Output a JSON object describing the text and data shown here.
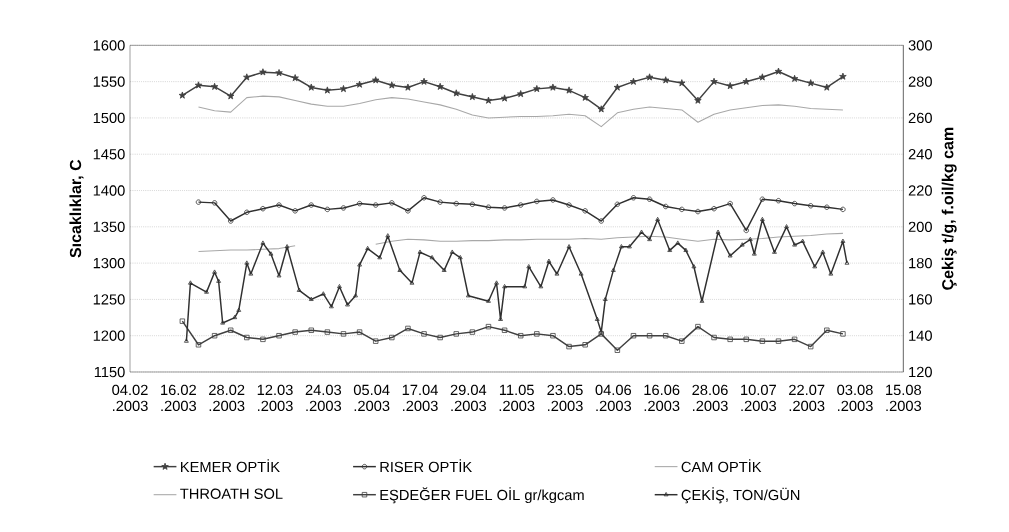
{
  "chart_data": {
    "type": "line",
    "ylabel": "Sıcaklıklar, C",
    "y2label": "Çekiş t/g, f.oil/kg cam",
    "x": [
      "2003-02-17",
      "2003-02-21",
      "2003-02-25",
      "2003-03-01",
      "2003-03-05",
      "2003-03-09",
      "2003-03-13",
      "2003-03-17",
      "2003-03-21",
      "2003-03-25",
      "2003-03-29",
      "2003-04-02",
      "2003-04-06",
      "2003-04-10",
      "2003-04-14",
      "2003-04-18",
      "2003-04-22",
      "2003-04-26",
      "2003-04-30",
      "2003-05-04",
      "2003-05-08",
      "2003-05-12",
      "2003-05-16",
      "2003-05-20",
      "2003-05-24",
      "2003-05-28",
      "2003-06-01",
      "2003-06-05",
      "2003-06-09",
      "2003-06-13",
      "2003-06-17",
      "2003-06-21",
      "2003-06-25",
      "2003-06-29",
      "2003-07-03",
      "2003-07-07",
      "2003-07-11",
      "2003-07-15",
      "2003-07-19",
      "2003-07-23",
      "2003-07-27",
      "2003-07-31"
    ],
    "series": [
      {
        "name": "KEMER OPTİK",
        "color": "#404040",
        "marker": "star",
        "values": [
          1531,
          1545,
          1543,
          1530,
          1556,
          1563,
          1562,
          1555,
          1542,
          1538,
          1540,
          1546,
          1552,
          1545,
          1542,
          1550,
          1543,
          1534,
          1529,
          1524,
          1527,
          1533,
          1540,
          1542,
          1538,
          1528,
          1512,
          1542,
          1550,
          1556,
          1552,
          1548,
          1524,
          1550,
          1544,
          1550,
          1556,
          1564,
          1554,
          1548,
          1542,
          1557
        ]
      },
      {
        "name": "RISER OPTİK",
        "color": "#303030",
        "marker": "circle",
        "values": [
          null,
          1384,
          1383,
          1358,
          1370,
          1375,
          1380,
          1372,
          1380,
          1374,
          1376,
          1382,
          1380,
          1383,
          1372,
          1390,
          1384,
          1382,
          1381,
          1377,
          1376,
          1380,
          1385,
          1387,
          1380,
          1372,
          1358,
          1381,
          1390,
          1388,
          1378,
          1374,
          1371,
          1375,
          1382,
          1345,
          1388,
          1386,
          1382,
          1379,
          1377,
          1374
        ]
      },
      {
        "name": "CAM OPTİK",
        "color": "#a8a8a8",
        "marker": "none",
        "values": [
          null,
          1515,
          1510,
          1508,
          1528,
          1530,
          1529,
          1524,
          1519,
          1516,
          1516,
          1520,
          1525,
          1528,
          1526,
          1522,
          1518,
          1512,
          1504,
          1500,
          1501,
          1502,
          1502,
          1503,
          1505,
          1503,
          1488,
          1507,
          1512,
          1515,
          1513,
          1511,
          1494,
          1505,
          1511,
          1514,
          1517,
          1518,
          1516,
          1513,
          1512,
          1511
        ]
      },
      {
        "name": "THROATH SOL",
        "color": "#a8a8a8",
        "marker": "none",
        "values": [
          null,
          1316,
          1317,
          1318,
          1318,
          1319,
          1320,
          1324,
          null,
          null,
          null,
          null,
          1326,
          1330,
          1333,
          1332,
          1330,
          1330,
          1331,
          1331,
          1332,
          1332,
          1333,
          1333,
          1333,
          1334,
          1333,
          1335,
          1336,
          1337,
          1336,
          1333,
          1330,
          1333,
          1332,
          1333,
          1334,
          1336,
          1337,
          1338,
          1340,
          1341
        ]
      },
      {
        "name": "EŞDEĞER FUEL OİL gr/kgcam",
        "color": "#404040",
        "marker": "square",
        "axis": "y2",
        "values": [
          148,
          135,
          140,
          143,
          139,
          138,
          140,
          142,
          143,
          142,
          141,
          142,
          137,
          139,
          144,
          141,
          139,
          141,
          142,
          145,
          143,
          140,
          141,
          140,
          134,
          135,
          141,
          132,
          140,
          140,
          140,
          137,
          145,
          139,
          138,
          138,
          137,
          137,
          138,
          134,
          143,
          141
        ]
      },
      {
        "name": "ÇEKİŞ, TON/GÜN",
        "color": "#303030",
        "marker": "triangle",
        "axis": "y2",
        "x": [
          "2003-02-18",
          "2003-02-19",
          "2003-02-23",
          "2003-02-25",
          "2003-02-26",
          "2003-02-27",
          "2003-03-02",
          "2003-03-03",
          "2003-03-05",
          "2003-03-06",
          "2003-03-09",
          "2003-03-11",
          "2003-03-13",
          "2003-03-15",
          "2003-03-18",
          "2003-03-21",
          "2003-03-24",
          "2003-03-26",
          "2003-03-28",
          "2003-03-30",
          "2003-04-01",
          "2003-04-02",
          "2003-04-04",
          "2003-04-07",
          "2003-04-09",
          "2003-04-12",
          "2003-04-15",
          "2003-04-17",
          "2003-04-20",
          "2003-04-23",
          "2003-04-25",
          "2003-04-27",
          "2003-04-29",
          "2003-05-04",
          "2003-05-06",
          "2003-05-07",
          "2003-05-08",
          "2003-05-13",
          "2003-05-14",
          "2003-05-17",
          "2003-05-19",
          "2003-05-21",
          "2003-05-24",
          "2003-05-27",
          "2003-05-31",
          "2003-06-01",
          "2003-06-02",
          "2003-06-04",
          "2003-06-06",
          "2003-06-08",
          "2003-06-11",
          "2003-06-13",
          "2003-06-15",
          "2003-06-18",
          "2003-06-20",
          "2003-06-22",
          "2003-06-24",
          "2003-06-26",
          "2003-06-30",
          "2003-07-03",
          "2003-07-06",
          "2003-07-08",
          "2003-07-09",
          "2003-07-11",
          "2003-07-14",
          "2003-07-17",
          "2003-07-19",
          "2003-07-21",
          "2003-07-24",
          "2003-07-26",
          "2003-07-28",
          "2003-07-31",
          "2003-08-01"
        ],
        "values": [
          137,
          169,
          164,
          175,
          170,
          147,
          150,
          154,
          180,
          174,
          191,
          185,
          173,
          189,
          165,
          160,
          163,
          156,
          167,
          157,
          162,
          179,
          188,
          183,
          195,
          176,
          169,
          186,
          183,
          176,
          186,
          183,
          162,
          159,
          169,
          149,
          167,
          167,
          178,
          167,
          181,
          174,
          189,
          174,
          149,
          142,
          160,
          176,
          189,
          189,
          197,
          193,
          204,
          187,
          191,
          187,
          178,
          159,
          197,
          184,
          190,
          193,
          185,
          204,
          186,
          200,
          190,
          192,
          178,
          186,
          174,
          192,
          180
        ]
      }
    ],
    "xlim": [
      "2003-02-04",
      "2003-08-15"
    ],
    "xticks": [
      {
        "value": "2003-02-04",
        "label": "04.02 .2003"
      },
      {
        "value": "2003-02-16",
        "label": "16.02 .2003"
      },
      {
        "value": "2003-02-28",
        "label": "28.02 .2003"
      },
      {
        "value": "2003-03-12",
        "label": "12.03 .2003"
      },
      {
        "value": "2003-03-24",
        "label": "24.03 .2003"
      },
      {
        "value": "2003-04-05",
        "label": "05.04 .2003"
      },
      {
        "value": "2003-04-17",
        "label": "17.04 .2003"
      },
      {
        "value": "2003-04-29",
        "label": "29.04 .2003"
      },
      {
        "value": "2003-05-11",
        "label": "11.05 .2003"
      },
      {
        "value": "2003-05-23",
        "label": "23.05 .2003"
      },
      {
        "value": "2003-06-04",
        "label": "04.06 .2003"
      },
      {
        "value": "2003-06-16",
        "label": "16.06 .2003"
      },
      {
        "value": "2003-06-28",
        "label": "28.06 .2003"
      },
      {
        "value": "2003-07-10",
        "label": "10.07 .2003"
      },
      {
        "value": "2003-07-22",
        "label": "22.07 .2003"
      },
      {
        "value": "2003-08-03",
        "label": "03.08 .2003"
      },
      {
        "value": "2003-08-15",
        "label": "15.08 .2003"
      }
    ],
    "ylim": [
      1150,
      1600
    ],
    "yticks": [
      1150,
      1200,
      1250,
      1300,
      1350,
      1400,
      1450,
      1500,
      1550,
      1600
    ],
    "y2lim": [
      120,
      300
    ],
    "y2ticks": [
      120,
      140,
      160,
      180,
      200,
      220,
      240,
      260,
      280,
      300
    ],
    "grid": "y",
    "legend": "bottom",
    "line_style": "solid"
  }
}
